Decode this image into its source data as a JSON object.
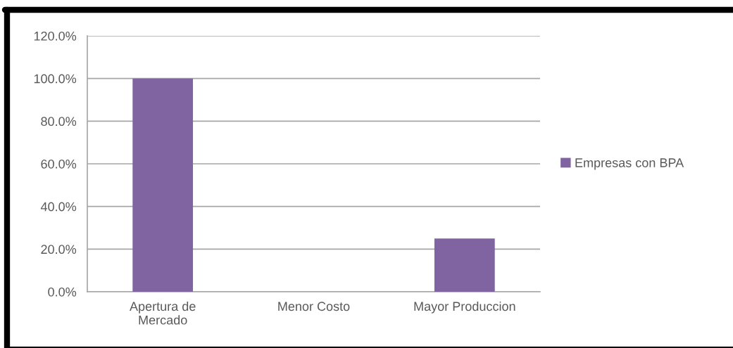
{
  "chart_data": {
    "type": "bar",
    "categories": [
      "Apertura de Mercado",
      "Menor Costo",
      "Mayor Produccion"
    ],
    "series": [
      {
        "name": "Empresas con BPA",
        "color": "#8064a2",
        "values": [
          100,
          0,
          25
        ]
      }
    ],
    "ylim": [
      0,
      120
    ],
    "yticks": [
      {
        "value": 0,
        "label": "0.0%"
      },
      {
        "value": 20,
        "label": "20.0%"
      },
      {
        "value": 40,
        "label": "40.0%"
      },
      {
        "value": 60,
        "label": "60.0%"
      },
      {
        "value": 80,
        "label": "80.0%"
      },
      {
        "value": 100,
        "label": "100.0%"
      },
      {
        "value": 120,
        "label": "120.0%"
      }
    ],
    "grid": "y",
    "legend": "right"
  }
}
